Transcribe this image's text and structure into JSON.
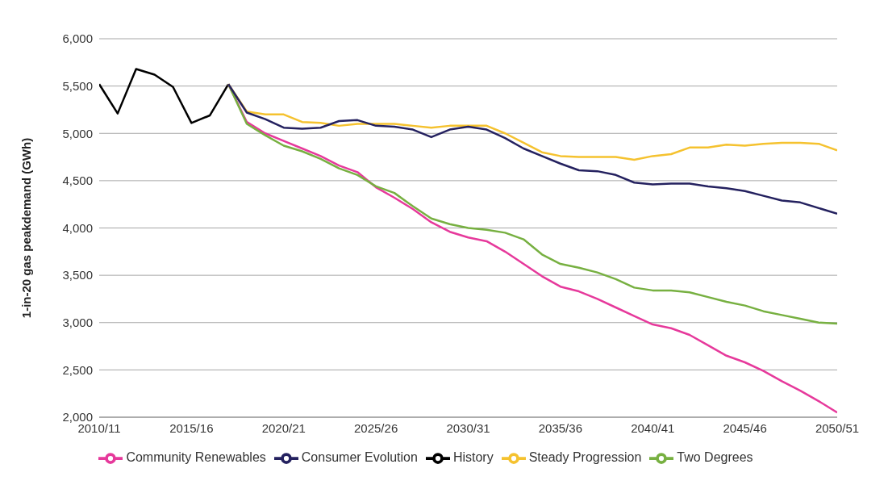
{
  "chart_data": {
    "type": "line",
    "ylabel": "1-in-20 gas peakdemand (GWh)",
    "categories": [
      "2010/11",
      null,
      null,
      null,
      null,
      "2015/16",
      null,
      null,
      null,
      null,
      "2020/21",
      null,
      null,
      null,
      null,
      "2025/26",
      null,
      null,
      null,
      null,
      "2030/31",
      null,
      null,
      null,
      null,
      "2035/36",
      null,
      null,
      null,
      null,
      "2040/41",
      null,
      null,
      null,
      null,
      "2045/46",
      null,
      null,
      null,
      null,
      "2050/51"
    ],
    "ylim": [
      2000,
      6000
    ],
    "yticks": [
      {
        "value": 2000,
        "label": "2,000"
      },
      {
        "value": 2500,
        "label": "2,500"
      },
      {
        "value": 3000,
        "label": "3,000"
      },
      {
        "value": 3500,
        "label": "3,500"
      },
      {
        "value": 4000,
        "label": "4,000"
      },
      {
        "value": 4500,
        "label": "4,500"
      },
      {
        "value": 5000,
        "label": "5,000"
      },
      {
        "value": 5500,
        "label": "5,500"
      },
      {
        "value": 6000,
        "label": "6,000"
      }
    ],
    "grid": "y",
    "legend": "bottom",
    "marker": "none",
    "line_style": "solid",
    "series": [
      {
        "name": "History",
        "color": "#000000",
        "values": [
          5520,
          5210,
          5680,
          5620,
          5490,
          5110,
          5190,
          5520,
          null,
          null,
          null,
          null,
          null,
          null,
          null,
          null,
          null,
          null,
          null,
          null,
          null,
          null,
          null,
          null,
          null,
          null,
          null,
          null,
          null,
          null,
          null,
          null,
          null,
          null,
          null,
          null,
          null,
          null,
          null,
          null,
          null
        ]
      },
      {
        "name": "Community Renewables",
        "color": "#e6399b",
        "values": [
          null,
          null,
          null,
          null,
          null,
          null,
          null,
          5520,
          5120,
          5000,
          4920,
          4840,
          4760,
          4660,
          4590,
          4430,
          4320,
          4200,
          4060,
          3960,
          3900,
          3860,
          3750,
          3620,
          3490,
          3380,
          3330,
          3250,
          3160,
          3070,
          2980,
          2940,
          2870,
          2760,
          2650,
          2580,
          2490,
          2380,
          2280,
          2170,
          2050
        ]
      },
      {
        "name": "Two Degrees",
        "color": "#77b041",
        "values": [
          null,
          null,
          null,
          null,
          null,
          null,
          null,
          5520,
          5100,
          4980,
          4870,
          4810,
          4730,
          4630,
          4560,
          4440,
          4370,
          4230,
          4100,
          4040,
          4000,
          3980,
          3950,
          3880,
          3720,
          3620,
          3580,
          3530,
          3460,
          3370,
          3340,
          3340,
          3320,
          3270,
          3220,
          3180,
          3120,
          3080,
          3040,
          3000,
          2990
        ]
      },
      {
        "name": "Steady Progression",
        "color": "#f5c22f",
        "values": [
          null,
          null,
          null,
          null,
          null,
          null,
          null,
          5520,
          5230,
          5200,
          5200,
          5120,
          5110,
          5080,
          5100,
          5100,
          5100,
          5080,
          5060,
          5080,
          5080,
          5080,
          5000,
          4900,
          4800,
          4760,
          4750,
          4750,
          4750,
          4720,
          4760,
          4780,
          4850,
          4850,
          4880,
          4870,
          4890,
          4900,
          4900,
          4890,
          4820
        ]
      },
      {
        "name": "Consumer Evolution",
        "color": "#24215f",
        "values": [
          null,
          null,
          null,
          null,
          null,
          null,
          null,
          5520,
          5220,
          5150,
          5060,
          5050,
          5060,
          5130,
          5140,
          5080,
          5070,
          5040,
          4960,
          5040,
          5070,
          5040,
          4950,
          4840,
          4760,
          4680,
          4610,
          4600,
          4560,
          4480,
          4460,
          4470,
          4470,
          4440,
          4420,
          4390,
          4340,
          4290,
          4270,
          4210,
          4150
        ]
      }
    ]
  }
}
